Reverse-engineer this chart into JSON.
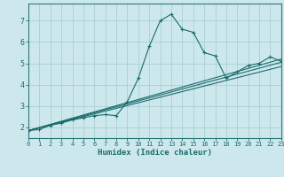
{
  "xlabel": "Humidex (Indice chaleur)",
  "bg_color": "#cde8ec",
  "grid_color": "#a8d0d4",
  "line_color": "#1a6b6b",
  "spine_color": "#2a7a7a",
  "xlim": [
    0,
    23
  ],
  "ylim": [
    1.5,
    7.8
  ],
  "xticks": [
    0,
    1,
    2,
    3,
    4,
    5,
    6,
    7,
    8,
    9,
    10,
    11,
    12,
    13,
    14,
    15,
    16,
    17,
    18,
    19,
    20,
    21,
    22,
    23
  ],
  "yticks": [
    2,
    3,
    4,
    5,
    6,
    7
  ],
  "main_x": [
    0,
    1,
    2,
    3,
    4,
    5,
    6,
    7,
    8,
    9,
    10,
    11,
    12,
    13,
    14,
    15,
    16,
    17,
    18,
    19,
    20,
    21,
    22,
    23
  ],
  "main_y": [
    1.85,
    1.9,
    2.1,
    2.2,
    2.35,
    2.45,
    2.55,
    2.6,
    2.55,
    3.2,
    4.3,
    5.8,
    7.0,
    7.3,
    6.6,
    6.45,
    5.5,
    5.35,
    4.3,
    4.6,
    4.9,
    5.0,
    5.3,
    5.1
  ],
  "trend_lines": [
    {
      "x": [
        0,
        23
      ],
      "y": [
        1.85,
        4.85
      ]
    },
    {
      "x": [
        0,
        23
      ],
      "y": [
        1.85,
        5.05
      ]
    },
    {
      "x": [
        0,
        23
      ],
      "y": [
        1.85,
        5.2
      ]
    }
  ]
}
